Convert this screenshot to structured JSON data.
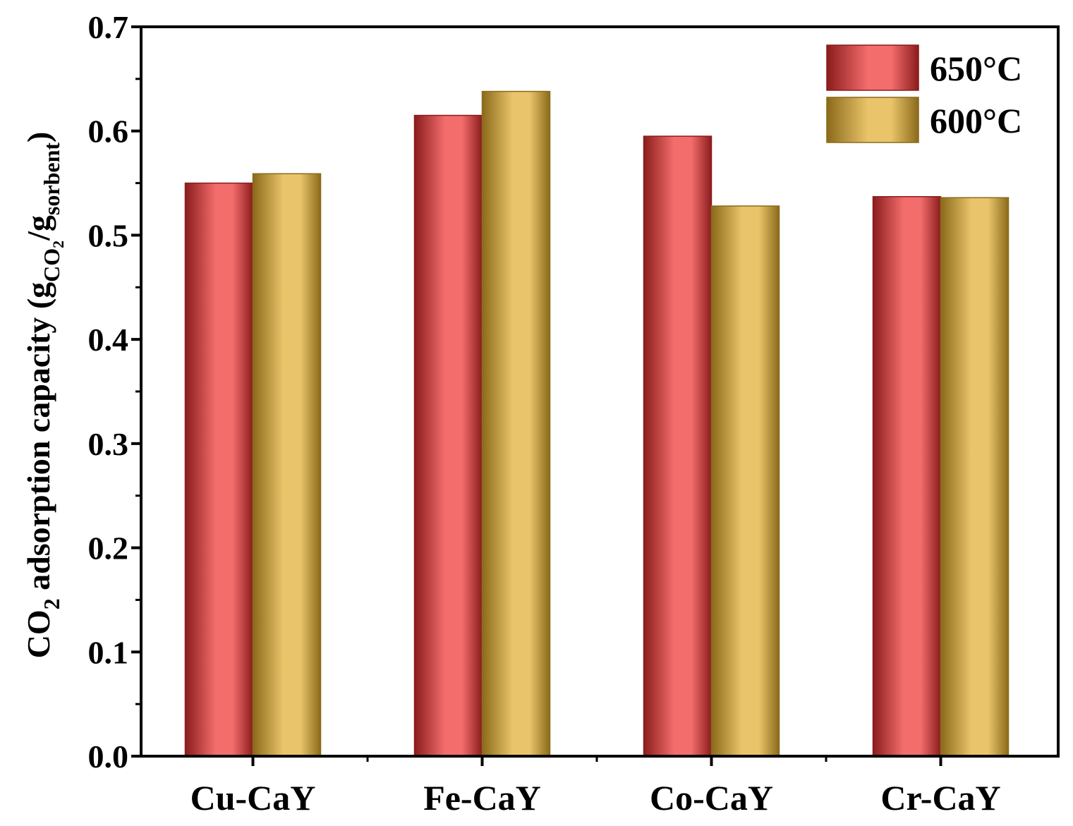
{
  "chart_data": {
    "type": "bar",
    "categories": [
      "Cu-CaY",
      "Fe-CaY",
      "Co-CaY",
      "Cr-CaY"
    ],
    "series": [
      {
        "name": "650°C",
        "values": [
          0.55,
          0.615,
          0.595,
          0.537
        ],
        "color": "#f46d6d",
        "dark": "#8b1c1c"
      },
      {
        "name": "600°C",
        "values": [
          0.559,
          0.638,
          0.528,
          0.536
        ],
        "color": "#eac46a",
        "dark": "#8a6a1a"
      }
    ],
    "ylim": [
      0,
      0.7
    ],
    "yticks": [
      "0.0",
      "0.1",
      "0.2",
      "0.3",
      "0.4",
      "0.5",
      "0.6",
      "0.7"
    ],
    "ytick_values": [
      0,
      0.1,
      0.2,
      0.3,
      0.4,
      0.5,
      0.6,
      0.7
    ],
    "ylabel": {
      "main": "CO",
      "main_sub": "2",
      "rest": " adsorption capacity (g",
      "sub_co": "CO",
      "sub_co2": "2",
      "slash": "/g",
      "sub_sorbent": "sorbent",
      "close": ")"
    },
    "xlabel": "",
    "legend_position": "top-right",
    "grid": false
  }
}
